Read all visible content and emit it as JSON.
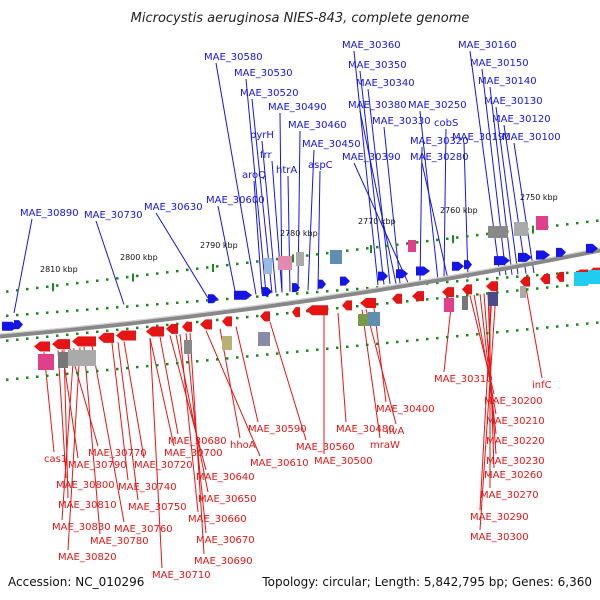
{
  "title": "Microcystis aeruginosa NIES-843, complete genome",
  "footer": {
    "accession": "Accession: NC_010296",
    "summary": "Topology: circular; Length: 5,842,795 bp; Genes: 6,360"
  },
  "colors": {
    "plus_strand": "#1515e6",
    "minus_strand": "#e61515",
    "backbone": "#8a8a8a",
    "tick": "#1a8a1a"
  },
  "ticks": [
    "2750 kbp",
    "2760 kbp",
    "2770 kbp",
    "2780 kbp",
    "2790 kbp",
    "2800 kbp",
    "2810 kbp"
  ],
  "top_labels": [
    "MAE_30890",
    "MAE_30730",
    "MAE_30630",
    "MAE_30600",
    "aroQ",
    "pyrH",
    "frr",
    "htrA",
    "MAE_30580",
    "MAE_30530",
    "MAE_30520",
    "MAE_30490",
    "MAE_30460",
    "MAE_30450",
    "aspC",
    "MAE_30360",
    "MAE_30350",
    "MAE_30340",
    "MAE_30380",
    "MAE_30330",
    "MAE_30390",
    "MAE_30320",
    "MAE_30250",
    "cobS",
    "MAE_30280",
    "MAE_30190",
    "MAE_30160",
    "MAE_30150",
    "MAE_30140",
    "MAE_30130",
    "MAE_30120",
    "MAE_30100"
  ],
  "bottom_labels": [
    "cas1",
    "MAE_30790",
    "MAE_30770",
    "MAE_30800",
    "MAE_30810",
    "MAE_30830",
    "MAE_30820",
    "MAE_30780",
    "MAE_30760",
    "MAE_30740",
    "MAE_30750",
    "MAE_30720",
    "MAE_30700",
    "MAE_30680",
    "MAE_30640",
    "MAE_30650",
    "MAE_30660",
    "MAE_30670",
    "MAE_30690",
    "MAE_30710",
    "MAE_30610",
    "hhoA",
    "MAE_30590",
    "MAE_30560",
    "MAE_30500",
    "MAE_30480",
    "mraW",
    "ilvA",
    "MAE_30400",
    "MAE_30310",
    "MAE_30200",
    "MAE_30210",
    "MAE_30220",
    "MAE_30230",
    "MAE_30260",
    "MAE_30270",
    "MAE_30290",
    "MAE_30300",
    "infC"
  ]
}
